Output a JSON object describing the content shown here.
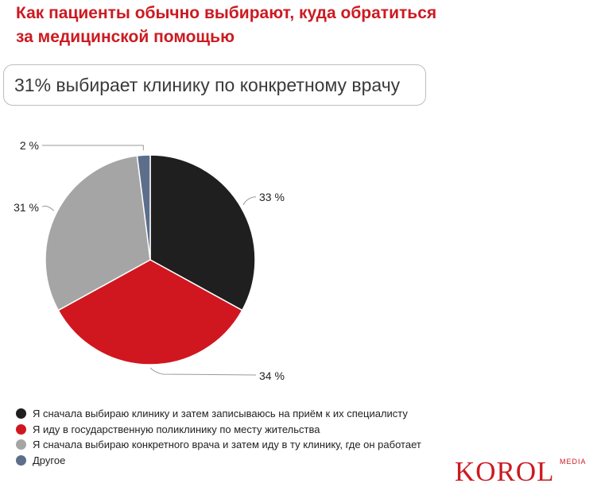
{
  "title": "Как пациенты обычно выбирают, куда обратиться\nза медицинской помощью",
  "callout": "31% выбирает клинику по конкретному врачу",
  "chart_data": {
    "type": "pie",
    "title": "Как пациенты обычно выбирают, куда обратиться за медицинской помощью",
    "slices": [
      {
        "label": "Я сначала выбираю клинику и затем записываюсь на приём к их специалисту",
        "value": 33,
        "value_label": "33 %",
        "color": "#1f1f1f"
      },
      {
        "label": "Я иду в государственную поликлинику по месту жительства",
        "value": 34,
        "value_label": "34 %",
        "color": "#d0171f"
      },
      {
        "label": "Я сначала выбираю конкретного врача и затем иду в ту клинику, где он работает",
        "value": 31,
        "value_label": "31 %",
        "color": "#a5a5a5"
      },
      {
        "label": "Другое",
        "value": 2,
        "value_label": "2 %",
        "color": "#5c6e8a"
      }
    ],
    "legend_position": "bottom-left"
  },
  "logo": {
    "main": "KOROL",
    "sub": "MEDIA"
  }
}
